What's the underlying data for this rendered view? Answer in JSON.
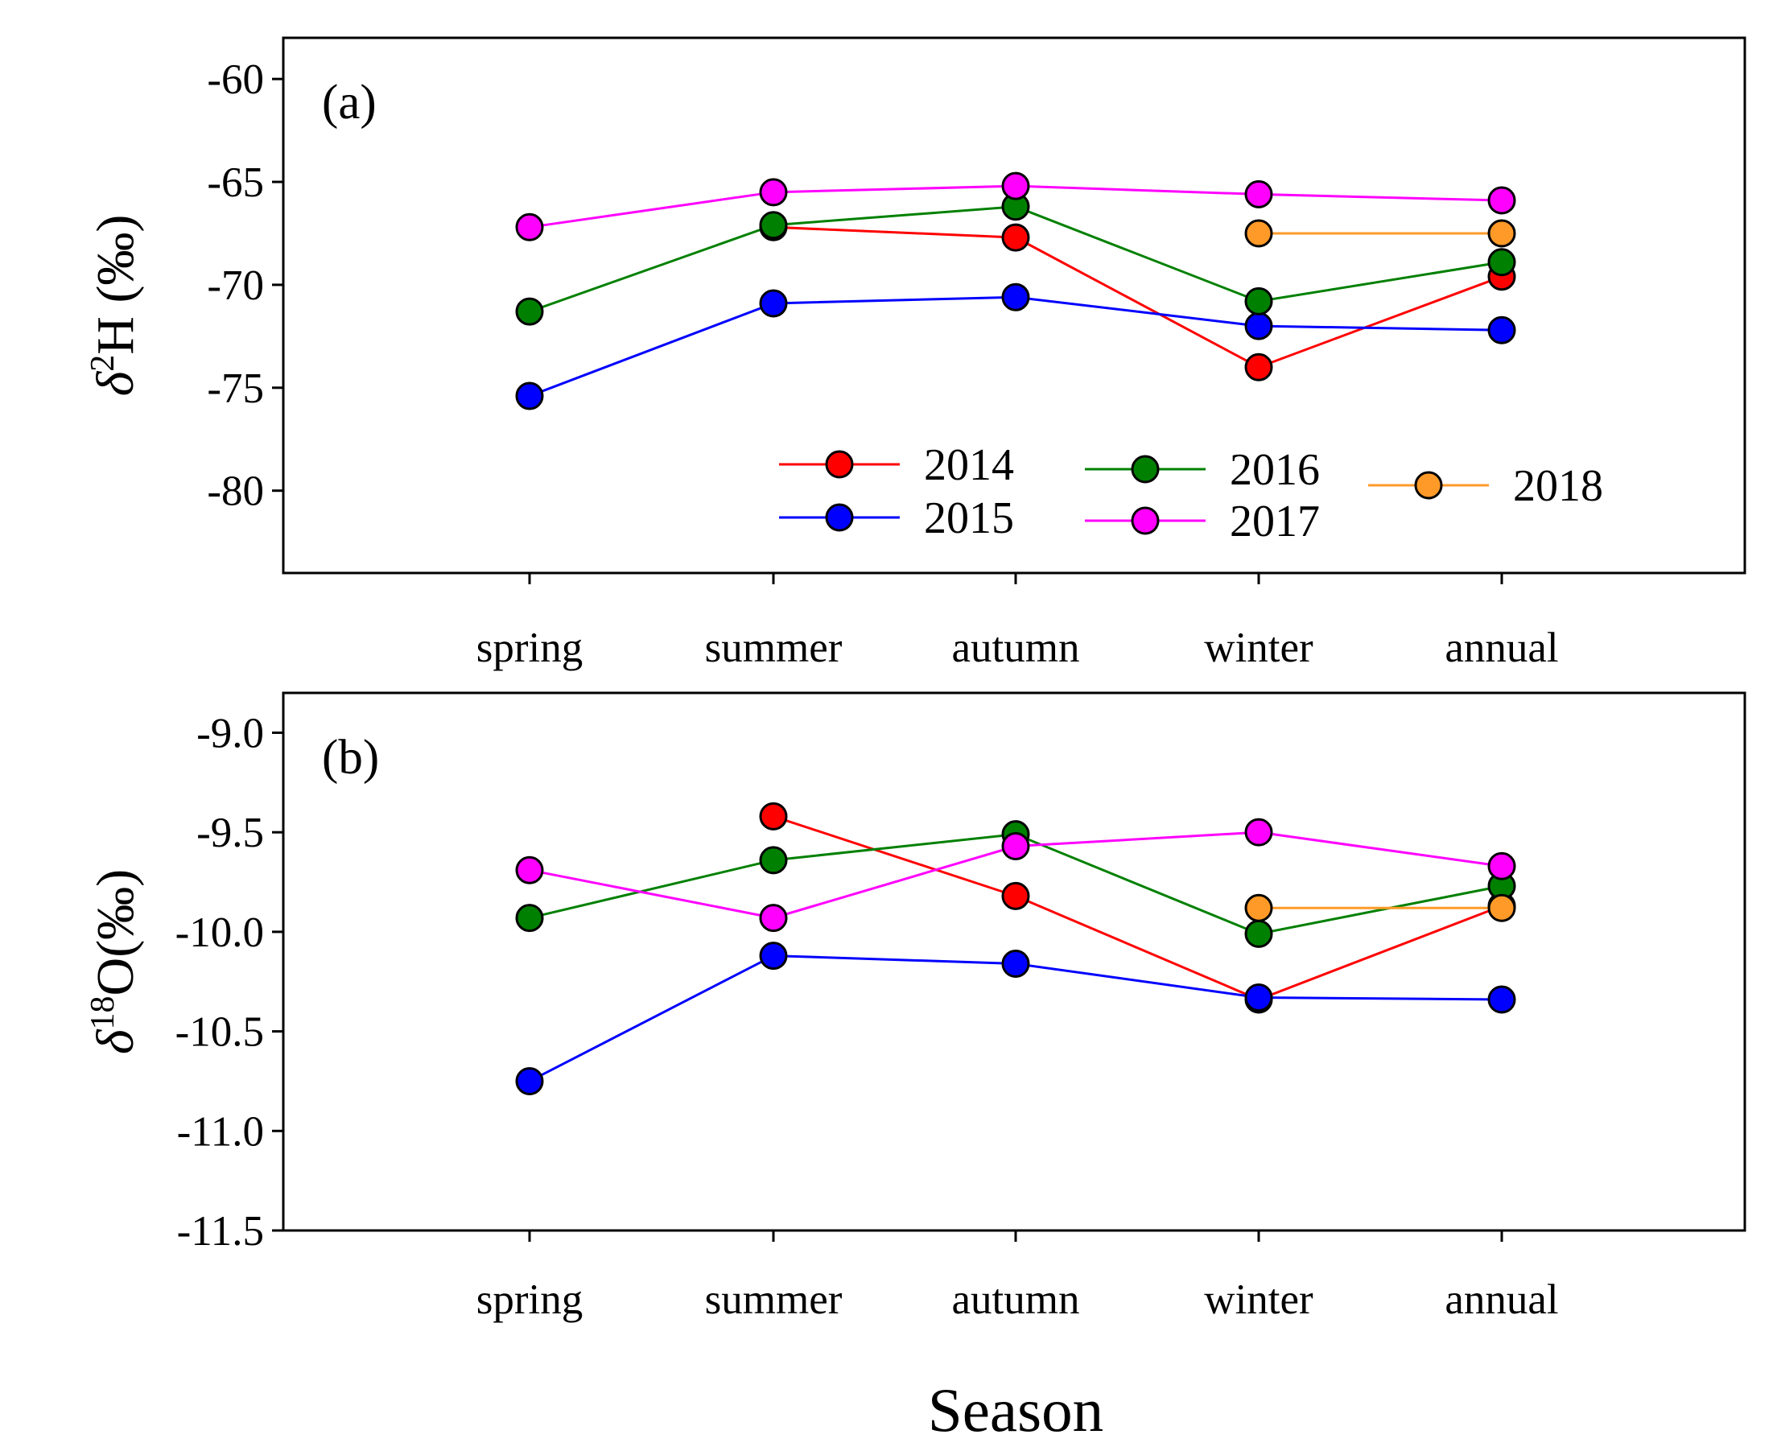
{
  "chart_data": [
    {
      "type": "line",
      "panel_label": "(a)",
      "categories": [
        "spring",
        "summer",
        "autumn",
        "winter",
        "annual"
      ],
      "ylabel": {
        "symbol": "δ",
        "sup": "2",
        "rest": "H (‰)"
      },
      "ylim": [
        -84,
        -58
      ],
      "yticks": [
        -60,
        -65,
        -70,
        -75,
        -80
      ],
      "legend_position": "bottom-right",
      "series": [
        {
          "name": "2014",
          "color": "#ff0000",
          "values": [
            null,
            -67.2,
            -67.7,
            -74.0,
            -69.6
          ]
        },
        {
          "name": "2015",
          "color": "#0000ff",
          "values": [
            -75.4,
            -70.9,
            -70.6,
            -72.0,
            -72.2
          ]
        },
        {
          "name": "2016",
          "color": "#008000",
          "values": [
            -71.3,
            -67.1,
            -66.2,
            -70.8,
            -68.9
          ]
        },
        {
          "name": "2017",
          "color": "#ff00ff",
          "values": [
            -67.2,
            -65.5,
            -65.2,
            -65.6,
            -65.9
          ]
        },
        {
          "name": "2018",
          "color": "#ff9a28",
          "values": [
            null,
            null,
            null,
            -67.5,
            -67.5
          ]
        }
      ]
    },
    {
      "type": "line",
      "panel_label": "(b)",
      "categories": [
        "spring",
        "summer",
        "autumn",
        "winter",
        "annual"
      ],
      "ylabel": {
        "symbol": "δ",
        "sup": "18",
        "rest": "O(‰)"
      },
      "ylim": [
        -11.5,
        -8.8
      ],
      "yticks": [
        "-9.0",
        "-9.5",
        "-10.0",
        "-10.5",
        "-11.0",
        "-11.5"
      ],
      "series": [
        {
          "name": "2014",
          "color": "#ff0000",
          "values": [
            null,
            -9.42,
            -9.82,
            -10.34,
            -9.87
          ]
        },
        {
          "name": "2015",
          "color": "#0000ff",
          "values": [
            -10.75,
            -10.12,
            -10.16,
            -10.33,
            -10.34
          ]
        },
        {
          "name": "2016",
          "color": "#008000",
          "values": [
            -9.93,
            -9.64,
            -9.51,
            -10.01,
            -9.77
          ]
        },
        {
          "name": "2017",
          "color": "#ff00ff",
          "values": [
            -9.69,
            -9.93,
            -9.57,
            -9.5,
            -9.67
          ]
        },
        {
          "name": "2018",
          "color": "#ff9a28",
          "values": [
            null,
            null,
            null,
            -9.88,
            -9.88
          ]
        }
      ]
    }
  ],
  "xlabel": "Season"
}
